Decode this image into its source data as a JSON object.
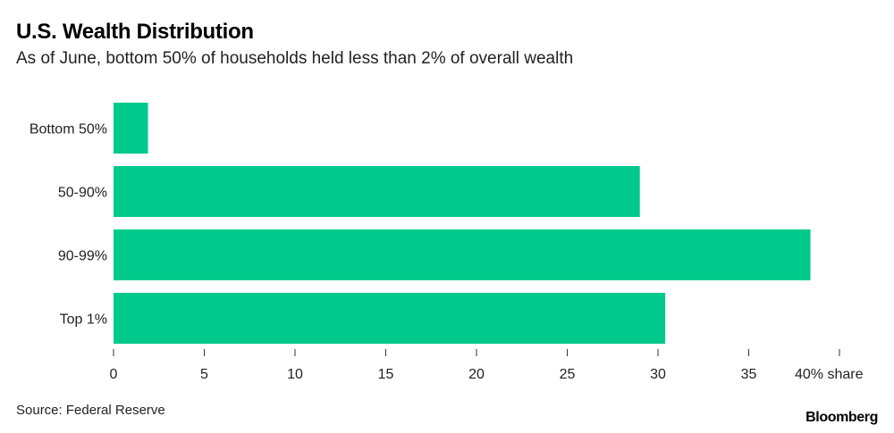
{
  "title": "U.S. Wealth Distribution",
  "subtitle": "As of June, bottom 50% of households held less than 2% of overall wealth",
  "source": "Source: Federal Reserve",
  "brand": "Bloomberg",
  "colors": {
    "bar": "#00C98C",
    "axis": "#333333",
    "text": "#000000"
  },
  "chart_data": {
    "type": "bar",
    "orientation": "horizontal",
    "categories": [
      "Bottom 50%",
      "50-90%",
      "90-99%",
      "Top 1%"
    ],
    "values": [
      1.9,
      29.0,
      38.4,
      30.4
    ],
    "xlim": [
      0,
      40
    ],
    "xticks": [
      0,
      5,
      10,
      15,
      20,
      25,
      30,
      35,
      40
    ],
    "xtick_labels": [
      "0",
      "5",
      "10",
      "15",
      "20",
      "25",
      "30",
      "35",
      "40% share"
    ],
    "grid": false
  }
}
